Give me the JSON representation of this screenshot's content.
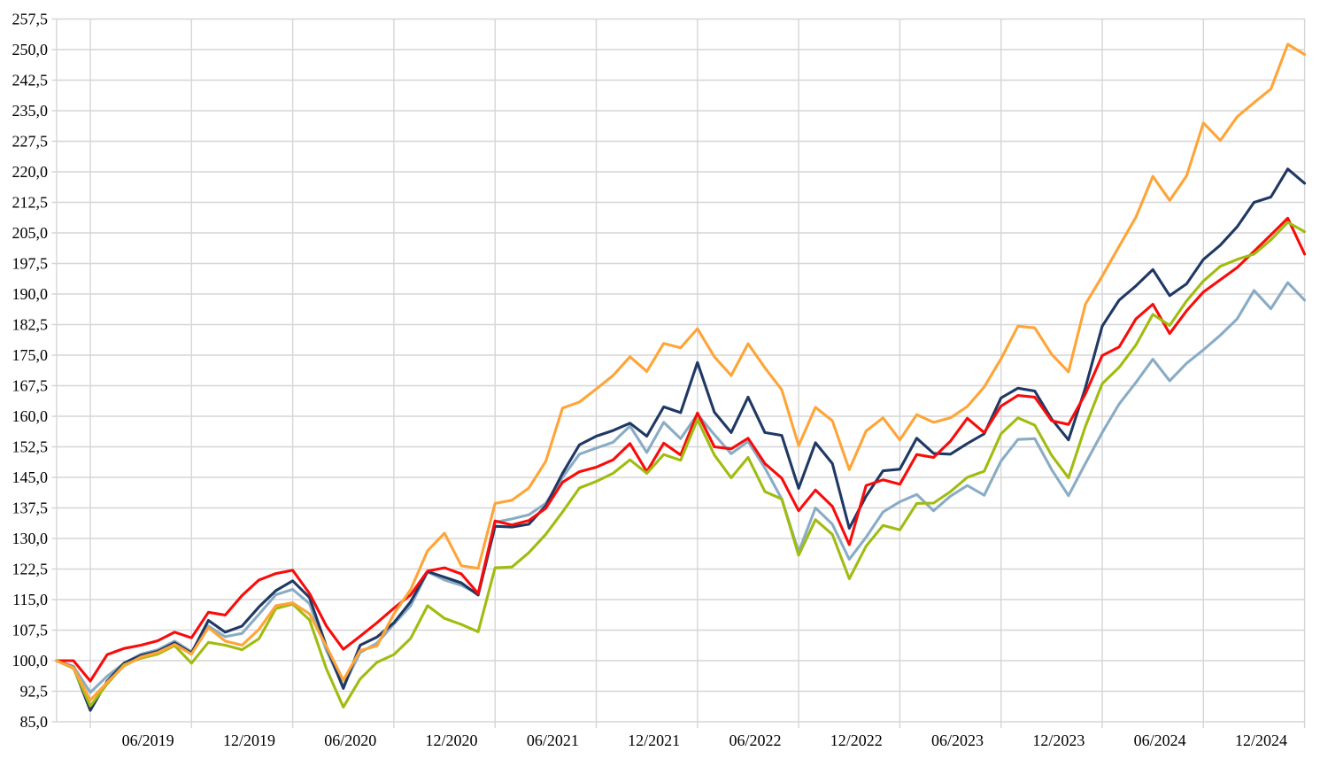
{
  "chart_data": {
    "type": "line",
    "title": "",
    "xlabel": "",
    "ylabel": "",
    "grid": true,
    "legend_position": "none",
    "decimal_separator": "comma",
    "ylim": [
      85.0,
      257.5
    ],
    "y_ticks": [
      {
        "v": 257.5,
        "label": "257,5"
      },
      {
        "v": 250.0,
        "label": "250,0"
      },
      {
        "v": 242.5,
        "label": "242,5"
      },
      {
        "v": 235.0,
        "label": "235,0"
      },
      {
        "v": 227.5,
        "label": "227,5"
      },
      {
        "v": 220.0,
        "label": "220,0"
      },
      {
        "v": 212.5,
        "label": "212,5"
      },
      {
        "v": 205.0,
        "label": "205,0"
      },
      {
        "v": 197.5,
        "label": "197,5"
      },
      {
        "v": 190.0,
        "label": "190,0"
      },
      {
        "v": 182.5,
        "label": "182,5"
      },
      {
        "v": 175.0,
        "label": "175,0"
      },
      {
        "v": 167.5,
        "label": "167,5"
      },
      {
        "v": 160.0,
        "label": "160,0"
      },
      {
        "v": 152.5,
        "label": "152,5"
      },
      {
        "v": 145.0,
        "label": "145,0"
      },
      {
        "v": 137.5,
        "label": "137,5"
      },
      {
        "v": 130.0,
        "label": "130,0"
      },
      {
        "v": 122.5,
        "label": "122,5"
      },
      {
        "v": 115.0,
        "label": "115,0"
      },
      {
        "v": 107.5,
        "label": "107,5"
      },
      {
        "v": 100.0,
        "label": "100,0"
      },
      {
        "v": 92.5,
        "label": "92,5"
      },
      {
        "v": 85.0,
        "label": "85,0"
      }
    ],
    "x_tick_labels": [
      "06/2019",
      "12/2019",
      "06/2020",
      "12/2020",
      "06/2021",
      "12/2021",
      "06/2022",
      "12/2022",
      "06/2023",
      "12/2023",
      "06/2024",
      "12/2024"
    ],
    "x": [
      "10/2018",
      "11/2018",
      "12/2018",
      "01/2019",
      "02/2019",
      "03/2019",
      "04/2019",
      "05/2019",
      "06/2019",
      "07/2019",
      "08/2019",
      "09/2019",
      "10/2019",
      "11/2019",
      "12/2019",
      "01/2020",
      "02/2020",
      "03/2020",
      "04/2020",
      "05/2020",
      "06/2020",
      "07/2020",
      "08/2020",
      "09/2020",
      "10/2020",
      "11/2020",
      "12/2020",
      "01/2021",
      "02/2021",
      "03/2021",
      "04/2021",
      "05/2021",
      "06/2021",
      "07/2021",
      "08/2021",
      "09/2021",
      "10/2021",
      "11/2021",
      "12/2021",
      "01/2022",
      "02/2022",
      "03/2022",
      "04/2022",
      "05/2022",
      "06/2022",
      "07/2022",
      "08/2022",
      "09/2022",
      "10/2022",
      "11/2022",
      "12/2022",
      "01/2023",
      "02/2023",
      "03/2023",
      "04/2023",
      "05/2023",
      "06/2023",
      "07/2023",
      "08/2023",
      "09/2023",
      "10/2023",
      "11/2023",
      "12/2023",
      "01/2024",
      "02/2024",
      "03/2024",
      "04/2024",
      "05/2024",
      "06/2024",
      "07/2024",
      "08/2024",
      "09/2024",
      "10/2024",
      "11/2024",
      "12/2024"
    ],
    "gridline_month_start_index": 2,
    "gridline_month_step": 6,
    "base_value": 100.0,
    "series": [
      {
        "name": "light-blue",
        "color": "#89ACC5",
        "values": [
          100.0,
          98.6,
          92.2,
          96.2,
          99.4,
          101.6,
          102.7,
          104.8,
          102.2,
          108.5,
          105.9,
          106.7,
          111.4,
          116.2,
          117.5,
          114.0,
          102.5,
          93.7,
          102.0,
          104.3,
          109.0,
          113.5,
          121.8,
          119.8,
          118.5,
          116.4,
          134.0,
          134.8,
          135.8,
          138.6,
          145.0,
          150.7,
          152.2,
          153.6,
          157.6,
          151.1,
          158.5,
          154.5,
          160.5,
          155.5,
          150.8,
          153.8,
          147.3,
          139.7,
          126.7,
          137.5,
          133.5,
          124.9,
          130.3,
          136.5,
          139.0,
          140.8,
          136.8,
          140.4,
          143.0,
          140.6,
          149.0,
          154.3,
          154.5,
          146.9,
          140.5,
          148.4,
          156.0,
          163.0,
          168.3,
          174.0,
          168.7,
          173.0,
          176.3,
          179.9,
          183.9,
          190.9,
          186.4,
          192.8,
          188.5
        ]
      },
      {
        "name": "dark-blue",
        "color": "#1F3864",
        "values": [
          100.0,
          98.4,
          87.8,
          95.0,
          99.4,
          101.3,
          102.3,
          104.4,
          101.9,
          109.9,
          107.0,
          108.5,
          113.2,
          117.2,
          119.6,
          115.5,
          103.5,
          93.2,
          103.8,
          105.8,
          109.3,
          114.5,
          121.9,
          120.5,
          119.1,
          116.1,
          133.0,
          132.8,
          133.5,
          138.0,
          146.0,
          153.0,
          155.1,
          156.5,
          158.3,
          155.1,
          162.3,
          160.9,
          173.2,
          161.0,
          156.0,
          164.7,
          156.0,
          155.3,
          142.3,
          153.5,
          148.4,
          132.5,
          140.4,
          146.6,
          147.0,
          154.6,
          150.9,
          150.7,
          153.3,
          155.7,
          164.5,
          166.9,
          166.2,
          159.3,
          154.2,
          167.0,
          182.1,
          188.5,
          192.0,
          196.0,
          189.6,
          192.5,
          198.5,
          202.0,
          206.5,
          212.5,
          213.8,
          220.7,
          217.2
        ]
      },
      {
        "name": "red",
        "color": "#FA0B0B",
        "values": [
          100.0,
          100.0,
          95.0,
          101.5,
          103.0,
          103.8,
          104.9,
          107.0,
          105.6,
          111.9,
          111.2,
          116.0,
          119.8,
          121.4,
          122.2,
          116.5,
          108.5,
          102.8,
          106.0,
          109.3,
          112.9,
          116.2,
          122.0,
          122.8,
          121.3,
          116.5,
          134.3,
          133.3,
          134.4,
          137.4,
          143.8,
          146.4,
          147.5,
          149.3,
          153.3,
          146.4,
          153.4,
          150.5,
          160.8,
          152.5,
          152.0,
          154.6,
          148.4,
          144.8,
          136.8,
          141.9,
          137.9,
          128.5,
          143.0,
          144.4,
          143.3,
          150.6,
          149.9,
          153.9,
          159.5,
          156.0,
          162.5,
          165.1,
          164.7,
          158.9,
          158.0,
          165.5,
          174.9,
          177.0,
          183.9,
          187.5,
          180.3,
          185.9,
          190.5,
          193.5,
          196.5,
          200.5,
          204.5,
          208.6,
          199.8
        ]
      },
      {
        "name": "yellow-green",
        "color": "#A0BC10",
        "values": [
          100.0,
          98.1,
          88.9,
          94.3,
          99.0,
          100.6,
          101.6,
          103.7,
          99.4,
          104.5,
          103.8,
          102.7,
          105.4,
          112.8,
          113.9,
          110.0,
          98.0,
          88.6,
          95.5,
          99.6,
          101.5,
          105.5,
          113.5,
          110.4,
          108.9,
          107.1,
          122.8,
          123.0,
          126.5,
          131.0,
          136.5,
          142.4,
          144.0,
          146.0,
          149.3,
          146.0,
          150.6,
          149.2,
          159.2,
          150.5,
          144.9,
          149.9,
          141.5,
          139.7,
          125.9,
          134.6,
          131.0,
          120.1,
          128.1,
          133.2,
          132.1,
          138.6,
          138.7,
          141.5,
          145.0,
          146.5,
          155.7,
          159.6,
          157.8,
          150.4,
          144.9,
          157.5,
          168.0,
          172.0,
          177.5,
          185.0,
          182.3,
          188.3,
          193.2,
          196.8,
          198.5,
          199.8,
          203.3,
          207.6,
          205.3
        ]
      },
      {
        "name": "orange",
        "color": "#FFA437",
        "values": [
          100.0,
          98.3,
          90.3,
          94.7,
          98.7,
          100.9,
          102.0,
          104.0,
          101.6,
          108.1,
          104.8,
          103.8,
          107.7,
          113.5,
          114.2,
          111.5,
          103.5,
          95.2,
          102.5,
          103.6,
          111.5,
          117.5,
          127.0,
          131.3,
          123.3,
          122.7,
          138.6,
          139.4,
          142.4,
          148.9,
          162.0,
          163.5,
          166.7,
          170.0,
          174.6,
          171.0,
          177.9,
          176.8,
          181.5,
          174.6,
          170.0,
          177.8,
          171.9,
          166.5,
          152.8,
          162.2,
          158.9,
          146.9,
          156.4,
          159.6,
          154.2,
          160.4,
          158.5,
          159.6,
          162.4,
          167.2,
          174.1,
          182.1,
          181.7,
          175.2,
          170.9,
          187.5,
          194.4,
          201.7,
          208.9,
          218.9,
          213.0,
          219.0,
          232.0,
          227.7,
          233.5,
          237.0,
          240.3,
          251.3,
          248.8
        ]
      }
    ],
    "colors": {
      "gridline": "#D6D6D6",
      "axis_text": "#000000",
      "background": "#FFFFFF"
    }
  }
}
